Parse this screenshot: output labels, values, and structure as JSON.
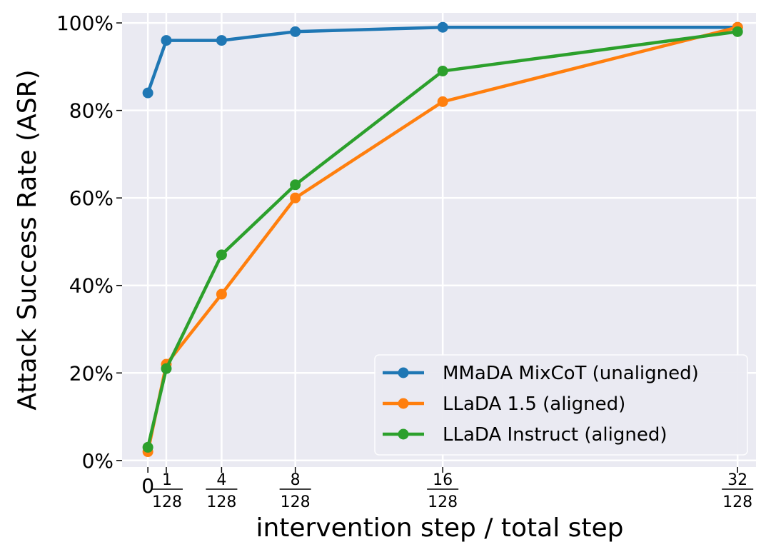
{
  "chart_data": {
    "type": "line",
    "title": "",
    "xlabel": "intervention step / total step",
    "ylabel": "Attack Success Rate (ASR)",
    "x": [
      0,
      1,
      4,
      8,
      16,
      32
    ],
    "x_tick_labels": [
      {
        "value": 0,
        "numerator": "0",
        "denominator": ""
      },
      {
        "value": 1,
        "numerator": "1",
        "denominator": "128"
      },
      {
        "value": 4,
        "numerator": "4",
        "denominator": "128"
      },
      {
        "value": 8,
        "numerator": "8",
        "denominator": "128"
      },
      {
        "value": 16,
        "numerator": "16",
        "denominator": "128"
      },
      {
        "value": 32,
        "numerator": "32",
        "denominator": "128"
      }
    ],
    "xlim": [
      -1.4,
      33.0
    ],
    "ylim": [
      -1.5,
      102.3
    ],
    "y_ticks": [
      0,
      20,
      40,
      60,
      80,
      100
    ],
    "y_tick_labels": [
      "0%",
      "20%",
      "40%",
      "60%",
      "80%",
      "100%"
    ],
    "grid": true,
    "legend_position": "bottom-right",
    "series": [
      {
        "name": "MMaDA MixCoT (unaligned)",
        "color": "#1f77b4",
        "values": [
          84,
          96,
          96,
          98,
          99,
          99
        ]
      },
      {
        "name": "LLaDA 1.5 (aligned)",
        "color": "#ff7f0e",
        "values": [
          2,
          22,
          38,
          60,
          82,
          99
        ]
      },
      {
        "name": "LLaDA Instruct (aligned)",
        "color": "#2ca02c",
        "values": [
          3,
          21,
          47,
          63,
          89,
          98
        ]
      }
    ]
  }
}
